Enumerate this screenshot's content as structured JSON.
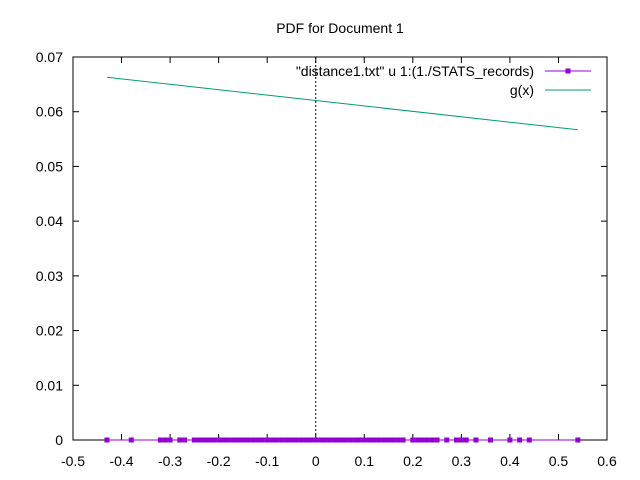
{
  "chart_data": {
    "type": "scatter",
    "title": "PDF for Document 1",
    "xlabel": "",
    "ylabel": "",
    "xlim": [
      -0.5,
      0.6
    ],
    "ylim": [
      0,
      0.07
    ],
    "x_ticks": [
      -0.5,
      -0.4,
      -0.3,
      -0.2,
      -0.1,
      0,
      0.1,
      0.2,
      0.3,
      0.4,
      0.5,
      0.6
    ],
    "y_ticks": [
      0,
      0.01,
      0.02,
      0.03,
      0.04,
      0.05,
      0.06,
      0.07
    ],
    "grid": false,
    "legend_position": "top-right",
    "zero_line": {
      "x": 0,
      "style": "dotted"
    },
    "series": [
      {
        "name": "\"distance1.txt\" u 1:(1./STATS_records)",
        "style": "linespoints",
        "color": "#9400d3",
        "x": [
          -0.43,
          -0.38,
          -0.32,
          -0.31,
          -0.3,
          -0.28,
          -0.27,
          -0.25,
          -0.24,
          -0.23,
          -0.22,
          -0.21,
          -0.2,
          -0.19,
          -0.18,
          -0.17,
          -0.16,
          -0.15,
          -0.14,
          -0.13,
          -0.12,
          -0.11,
          -0.1,
          -0.09,
          -0.08,
          -0.07,
          -0.06,
          -0.05,
          -0.04,
          -0.03,
          -0.02,
          -0.01,
          0.0,
          0.01,
          0.02,
          0.03,
          0.04,
          0.05,
          0.06,
          0.07,
          0.08,
          0.09,
          0.1,
          0.11,
          0.12,
          0.13,
          0.14,
          0.15,
          0.16,
          0.17,
          0.18,
          0.2,
          0.21,
          0.22,
          0.23,
          0.24,
          0.25,
          0.27,
          0.29,
          0.3,
          0.31,
          0.33,
          0.36,
          0.4,
          0.42,
          0.44,
          0.54
        ],
        "y": [
          0,
          0,
          0,
          0,
          0,
          0,
          0,
          0,
          0,
          0,
          0,
          0,
          0,
          0,
          0,
          0,
          0,
          0,
          0,
          0,
          0,
          0,
          0,
          0,
          0,
          0,
          0,
          0,
          0,
          0,
          0,
          0,
          0,
          0,
          0,
          0,
          0,
          0,
          0,
          0,
          0,
          0,
          0,
          0,
          0,
          0,
          0,
          0,
          0,
          0,
          0,
          0,
          0,
          0,
          0,
          0,
          0,
          0,
          0,
          0,
          0,
          0,
          0,
          0,
          0,
          0,
          0
        ]
      },
      {
        "name": "g(x)",
        "style": "line",
        "color": "#009e73",
        "x": [
          -0.43,
          0.54
        ],
        "y": [
          0.0663,
          0.0567
        ]
      }
    ]
  }
}
